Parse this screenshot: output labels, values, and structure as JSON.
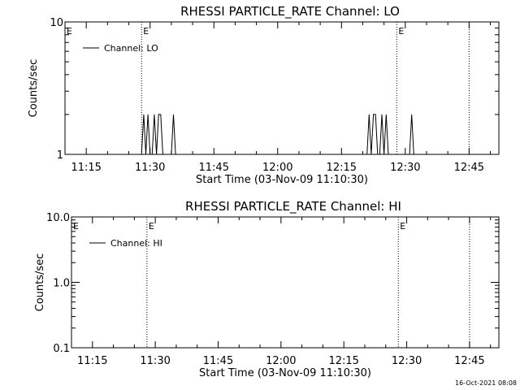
{
  "timestamp": "16-Oct-2021 08:08",
  "chart_data": [
    {
      "type": "line",
      "title": "RHESSI PARTICLE_RATE Channel: LO",
      "xlabel": "Start Time (03-Nov-09 11:10:30)",
      "ylabel": "Counts/sec",
      "yscale": "log",
      "xlim": [
        "11:10",
        "12:52"
      ],
      "ylim": [
        1,
        10
      ],
      "xticks": [
        "11:15",
        "11:30",
        "11:45",
        "12:00",
        "12:15",
        "12:30",
        "12:45"
      ],
      "yticks": [
        {
          "value": 1,
          "label": "1"
        },
        {
          "value": 10,
          "label": "10"
        }
      ],
      "legend": {
        "position": "top-left",
        "entries": [
          {
            "name": "Channel: LO",
            "color": "#000000"
          }
        ]
      },
      "event_markers": [
        {
          "time": "11:28",
          "label": "E"
        },
        {
          "time": "12:28",
          "label": "E"
        },
        {
          "time": "12:45"
        }
      ],
      "series": [
        {
          "name": "Channel: LO",
          "color": "#000000",
          "x": [
            "11:28",
            "11:28:30",
            "11:29",
            "11:29:30",
            "11:30",
            "11:30:30",
            "11:31",
            "11:31:30",
            "11:32",
            "11:32:30",
            "11:33",
            "11:35",
            "11:35:30",
            "11:36",
            "12:21",
            "12:21:30",
            "12:22",
            "12:22:30",
            "12:23",
            "12:23:30",
            "12:24",
            "12:24:30",
            "12:25",
            "12:25:30",
            "12:26",
            "12:31",
            "12:31:30",
            "12:32"
          ],
          "y": [
            1,
            2,
            1,
            2,
            1,
            1,
            2,
            1,
            2,
            2,
            1,
            1,
            2,
            1,
            1,
            2,
            1,
            2,
            2,
            1,
            1,
            2,
            1,
            2,
            1,
            1,
            2,
            1
          ]
        }
      ]
    },
    {
      "type": "line",
      "title": "RHESSI PARTICLE_RATE Channel: HI",
      "xlabel": "Start Time (03-Nov-09 11:10:30)",
      "ylabel": "Counts/sec",
      "yscale": "log",
      "xlim": [
        "11:10",
        "12:52"
      ],
      "ylim": [
        0.1,
        10
      ],
      "xticks": [
        "11:15",
        "11:30",
        "11:45",
        "12:00",
        "12:15",
        "12:30",
        "12:45"
      ],
      "yticks": [
        {
          "value": 0.1,
          "label": "0.1"
        },
        {
          "value": 1,
          "label": "1.0"
        },
        {
          "value": 10,
          "label": "10.0"
        }
      ],
      "legend": {
        "position": "top-left",
        "entries": [
          {
            "name": "Channel: HI",
            "color": "#000000"
          }
        ]
      },
      "event_markers": [
        {
          "time": "11:28",
          "label": "E"
        },
        {
          "time": "12:28",
          "label": "E"
        },
        {
          "time": "12:45"
        }
      ],
      "series": [
        {
          "name": "Channel: HI",
          "color": "#000000",
          "x": [],
          "y": []
        }
      ]
    }
  ]
}
